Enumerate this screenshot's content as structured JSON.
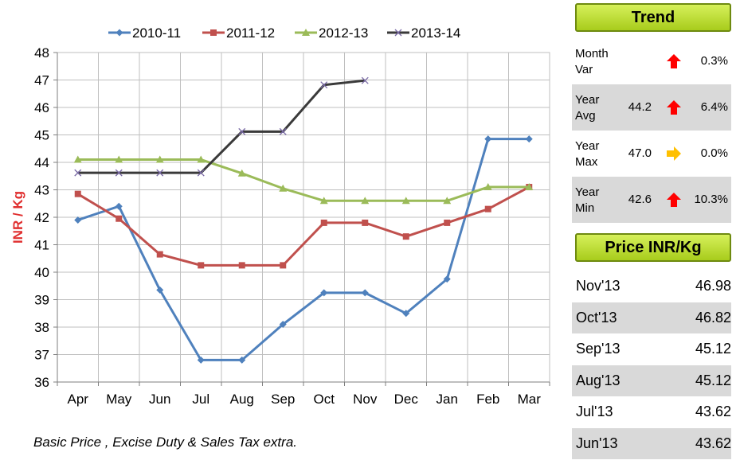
{
  "chart_data": {
    "type": "line",
    "title": "",
    "xlabel": "",
    "ylabel": "INR / Kg",
    "ylim": [
      36,
      48
    ],
    "yticks": [
      "36",
      "37",
      "38",
      "39",
      "40",
      "41",
      "42",
      "43",
      "44",
      "45",
      "46",
      "47",
      "48"
    ],
    "categories": [
      "Apr",
      "May",
      "Jun",
      "Jul",
      "Aug",
      "Sep",
      "Oct",
      "Nov",
      "Dec",
      "Jan",
      "Feb",
      "Mar"
    ],
    "grid": true,
    "legend_position": "top",
    "series": [
      {
        "name": "2010-11",
        "color": "#4f81bd",
        "marker": "diamond",
        "values": [
          41.9,
          42.4,
          39.35,
          36.8,
          36.8,
          38.1,
          39.25,
          39.25,
          38.5,
          39.75,
          44.85,
          44.85
        ]
      },
      {
        "name": "2011-12",
        "color": "#c0504d",
        "marker": "square",
        "values": [
          42.85,
          41.95,
          40.65,
          40.25,
          40.25,
          40.25,
          41.8,
          41.8,
          41.3,
          41.8,
          42.3,
          43.1
        ]
      },
      {
        "name": "2012-13",
        "color": "#9bbb59",
        "marker": "triangle",
        "values": [
          44.1,
          44.1,
          44.1,
          44.1,
          43.6,
          43.05,
          42.6,
          42.6,
          42.6,
          42.6,
          43.1,
          43.1
        ]
      },
      {
        "name": "2013-14",
        "color": "#3a3a3a",
        "marker": "x",
        "values": [
          43.62,
          43.62,
          43.62,
          43.62,
          45.12,
          45.12,
          46.82,
          46.98,
          null,
          null,
          null,
          null
        ]
      }
    ]
  },
  "footnote": "Basic Price , Excise Duty & Sales Tax  extra.",
  "trend": {
    "title": "Trend",
    "rows": [
      {
        "label_line1": "Month",
        "label_line2": "Var",
        "value": "",
        "direction": "up",
        "arrow_color": "#ff0000",
        "pct": "0.3%"
      },
      {
        "label_line1": "Year",
        "label_line2": "Avg",
        "value": "44.2",
        "direction": "up",
        "arrow_color": "#ff0000",
        "pct": "6.4%"
      },
      {
        "label_line1": "Year",
        "label_line2": "Max",
        "value": "47.0",
        "direction": "right",
        "arrow_color": "#ffc000",
        "pct": "0.0%"
      },
      {
        "label_line1": "Year",
        "label_line2": "Min",
        "value": "42.6",
        "direction": "up",
        "arrow_color": "#ff0000",
        "pct": "10.3%"
      }
    ]
  },
  "price": {
    "title": "Price  INR/Kg",
    "rows": [
      {
        "month": "Nov'13",
        "price": "46.98"
      },
      {
        "month": "Oct'13",
        "price": "46.82"
      },
      {
        "month": "Sep'13",
        "price": "45.12"
      },
      {
        "month": "Aug'13",
        "price": "45.12"
      },
      {
        "month": "Jul'13",
        "price": "43.62"
      },
      {
        "month": "Jun'13",
        "price": "43.62"
      }
    ]
  }
}
